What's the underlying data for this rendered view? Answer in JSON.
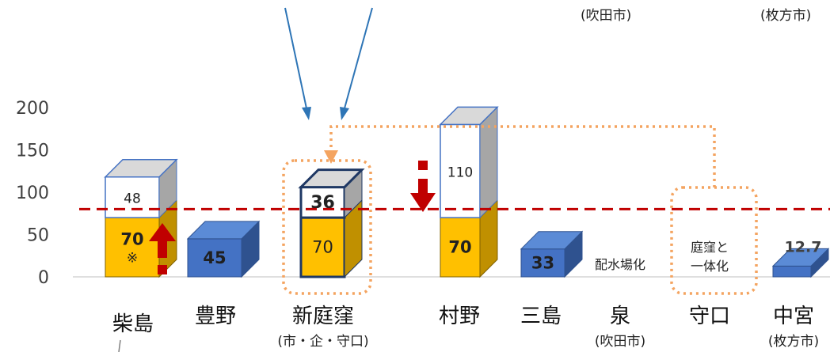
{
  "top_notes": {
    "suita": "(吹田市)",
    "hirakata": "(枚方市)"
  },
  "chart_data": {
    "type": "bar",
    "ylim": [
      0,
      200
    ],
    "yticks": [
      "0",
      "50",
      "100",
      "150",
      "200"
    ],
    "threshold": 80,
    "categories": [
      {
        "name": "柴島",
        "sub": "",
        "segments": [
          {
            "value": 70,
            "label": "70",
            "note": "※",
            "kind": "gold"
          },
          {
            "value": 48,
            "label": "48",
            "kind": "white"
          }
        ]
      },
      {
        "name": "豊野",
        "sub": "",
        "segments": [
          {
            "value": 45,
            "label": "45",
            "kind": "blue"
          }
        ]
      },
      {
        "name": "新庭窪",
        "sub": "(市・企・守口)",
        "segments": [
          {
            "value": 70,
            "label": "70",
            "kind": "gold-bold"
          },
          {
            "value": 36,
            "label": "36",
            "kind": "white-bold"
          }
        ]
      },
      {
        "name": "村野",
        "sub": "",
        "segments": [
          {
            "value": 70,
            "label": "70",
            "kind": "gold"
          },
          {
            "value": 110,
            "label": "110",
            "kind": "white"
          }
        ]
      },
      {
        "name": "三島",
        "sub": "",
        "segments": [
          {
            "value": 33,
            "label": "33",
            "kind": "blue"
          }
        ]
      },
      {
        "name": "泉",
        "sub": "(吹田市)",
        "segments": [],
        "text": "配水場化"
      },
      {
        "name": "守口",
        "sub": "",
        "segments": [],
        "text": "庭窪と\n一体化"
      },
      {
        "name": "中宮",
        "sub": "(枚方市)",
        "segments": [
          {
            "value": 12.7,
            "label": "12.7",
            "kind": "blue"
          }
        ]
      }
    ]
  },
  "colors": {
    "gold": "#FFC000",
    "gold_side": "#C09000",
    "gold_top": "#FFD966",
    "blue": "#4472C4",
    "blue_side": "#2F528F",
    "blue_top": "#5B8BD6",
    "white_side": "#A6A6A6",
    "white_top": "#D9D9D9",
    "threshold": "#C00000",
    "dotted": "#F4A460",
    "arrow_red": "#C00000",
    "arrow_blue": "#2E75B6"
  }
}
